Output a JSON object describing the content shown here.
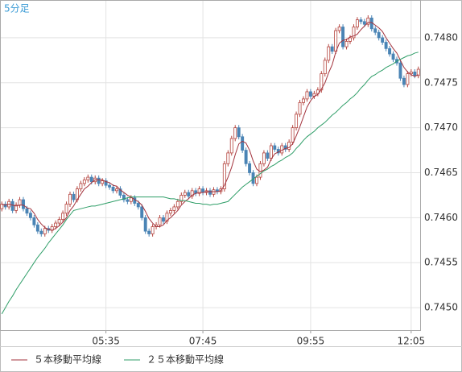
{
  "chart_data": {
    "type": "candlestick",
    "title": "5分足",
    "ylim": [
      0.74475,
      0.74842
    ],
    "yticks": [
      {
        "value": 0.745,
        "label": "0.7450"
      },
      0.7455,
      {
        "value": 0.746,
        "label": "0.7460"
      },
      0.7465,
      {
        "value": 0.747,
        "label": "0.7470"
      },
      0.7475,
      {
        "value": 0.748,
        "label": "0.7480"
      }
    ],
    "xticks": [
      {
        "value": 29,
        "label": "05:35"
      },
      {
        "value": 56,
        "label": "07:45"
      },
      {
        "value": 86,
        "label": "09:55"
      },
      {
        "value": 114,
        "label": "12:05"
      }
    ],
    "grid": true,
    "up_color": "#b5453f",
    "down_color": "#4a84b5",
    "candles": {
      "open": [
        0.7461,
        0.74615,
        0.74612,
        0.74618,
        0.74608,
        0.74614,
        0.7462,
        0.7461,
        0.74605,
        0.746,
        0.74592,
        0.74585,
        0.74582,
        0.74588,
        0.74586,
        0.7459,
        0.74594,
        0.74598,
        0.74605,
        0.74615,
        0.74626,
        0.7462,
        0.74632,
        0.74638,
        0.74642,
        0.74645,
        0.7464,
        0.74644,
        0.74638,
        0.74641,
        0.74636,
        0.74634,
        0.7463,
        0.74632,
        0.74625,
        0.7462,
        0.74618,
        0.74622,
        0.74616,
        0.74612,
        0.746,
        0.74585,
        0.74582,
        0.7459,
        0.74592,
        0.746,
        0.74596,
        0.74605,
        0.74608,
        0.74612,
        0.74618,
        0.74625,
        0.74628,
        0.74624,
        0.7463,
        0.74627,
        0.74632,
        0.74628,
        0.7463,
        0.74626,
        0.74631,
        0.74629,
        0.74632,
        0.7466,
        0.74672,
        0.74688,
        0.747,
        0.7469,
        0.74675,
        0.7466,
        0.7465,
        0.74638,
        0.74645,
        0.7466,
        0.74672,
        0.74666,
        0.7468,
        0.74676,
        0.74672,
        0.7468,
        0.74676,
        0.74684,
        0.747,
        0.74715,
        0.74728,
        0.74732,
        0.7474,
        0.74735,
        0.74738,
        0.74742,
        0.7476,
        0.74775,
        0.7479,
        0.74785,
        0.74808,
        0.74812,
        0.7479,
        0.74796,
        0.748,
        0.74812,
        0.7482,
        0.74818,
        0.74815,
        0.74822,
        0.7481,
        0.74806,
        0.748,
        0.74795,
        0.74788,
        0.74782,
        0.74776,
        0.74772,
        0.74755,
        0.74748,
        0.7476,
        0.74762,
        0.74758
      ],
      "high": [
        0.74618,
        0.74618,
        0.74621,
        0.74621,
        0.74617,
        0.74623,
        0.74623,
        0.74613,
        0.74608,
        0.74603,
        0.74595,
        0.74588,
        0.74591,
        0.74591,
        0.74593,
        0.74597,
        0.74601,
        0.74608,
        0.74618,
        0.74629,
        0.74629,
        0.74635,
        0.74641,
        0.74645,
        0.74648,
        0.74648,
        0.74647,
        0.74647,
        0.74644,
        0.74644,
        0.74639,
        0.74637,
        0.74635,
        0.74635,
        0.74628,
        0.74623,
        0.74625,
        0.74625,
        0.74619,
        0.74615,
        0.74603,
        0.74588,
        0.74593,
        0.74595,
        0.74603,
        0.74603,
        0.74608,
        0.74611,
        0.74615,
        0.74621,
        0.74628,
        0.74631,
        0.74631,
        0.74633,
        0.74633,
        0.74635,
        0.74635,
        0.74633,
        0.74633,
        0.74634,
        0.74634,
        0.74635,
        0.74663,
        0.74675,
        0.74691,
        0.74703,
        0.74703,
        0.74693,
        0.74678,
        0.74663,
        0.74653,
        0.74648,
        0.74663,
        0.74675,
        0.74675,
        0.74683,
        0.74683,
        0.74679,
        0.74683,
        0.74683,
        0.74687,
        0.74703,
        0.74718,
        0.74731,
        0.74735,
        0.74743,
        0.74743,
        0.74741,
        0.74745,
        0.74763,
        0.74778,
        0.74793,
        0.74793,
        0.74811,
        0.74815,
        0.74815,
        0.74799,
        0.74803,
        0.74815,
        0.74823,
        0.74823,
        0.74821,
        0.74825,
        0.74825,
        0.74813,
        0.74809,
        0.74803,
        0.74798,
        0.74791,
        0.74785,
        0.74779,
        0.74775,
        0.74758,
        0.74763,
        0.74765,
        0.74765,
        0.74768
      ],
      "low": [
        0.74607,
        0.74609,
        0.74609,
        0.74605,
        0.74605,
        0.74611,
        0.74607,
        0.74602,
        0.74597,
        0.74589,
        0.74582,
        0.74579,
        0.74579,
        0.74583,
        0.74583,
        0.74587,
        0.74591,
        0.74595,
        0.74602,
        0.74612,
        0.74617,
        0.74617,
        0.74629,
        0.74635,
        0.74639,
        0.74637,
        0.74637,
        0.74635,
        0.74635,
        0.74633,
        0.74631,
        0.74627,
        0.74627,
        0.74622,
        0.74617,
        0.74615,
        0.74615,
        0.74613,
        0.74609,
        0.74597,
        0.74582,
        0.74579,
        0.74579,
        0.74587,
        0.74589,
        0.74593,
        0.74593,
        0.74602,
        0.74605,
        0.74609,
        0.74615,
        0.74622,
        0.74621,
        0.74621,
        0.74624,
        0.74624,
        0.74625,
        0.74625,
        0.74623,
        0.74623,
        0.74626,
        0.74626,
        0.74629,
        0.74657,
        0.74669,
        0.74685,
        0.74687,
        0.74672,
        0.74657,
        0.74647,
        0.74635,
        0.74635,
        0.74642,
        0.74657,
        0.74663,
        0.74663,
        0.74673,
        0.74669,
        0.74669,
        0.74673,
        0.74673,
        0.74681,
        0.74697,
        0.74712,
        0.74725,
        0.74729,
        0.74732,
        0.74732,
        0.74735,
        0.74739,
        0.74757,
        0.74772,
        0.74782,
        0.74782,
        0.74805,
        0.74787,
        0.74787,
        0.74793,
        0.74797,
        0.74809,
        0.74815,
        0.74812,
        0.74812,
        0.74807,
        0.74803,
        0.74797,
        0.74792,
        0.74785,
        0.74779,
        0.74773,
        0.74769,
        0.74752,
        0.74745,
        0.74745,
        0.74757,
        0.74755,
        0.74755
      ],
      "close": [
        0.74615,
        0.74612,
        0.74618,
        0.74608,
        0.74614,
        0.7462,
        0.7461,
        0.74605,
        0.746,
        0.74592,
        0.74585,
        0.74582,
        0.74588,
        0.74586,
        0.7459,
        0.74594,
        0.74598,
        0.74605,
        0.74615,
        0.74626,
        0.7462,
        0.74632,
        0.74638,
        0.74642,
        0.74645,
        0.7464,
        0.74644,
        0.74638,
        0.74641,
        0.74636,
        0.74634,
        0.7463,
        0.74632,
        0.74625,
        0.7462,
        0.74618,
        0.74622,
        0.74616,
        0.74612,
        0.746,
        0.74585,
        0.74582,
        0.7459,
        0.74592,
        0.746,
        0.74596,
        0.74605,
        0.74608,
        0.74612,
        0.74618,
        0.74625,
        0.74628,
        0.74624,
        0.7463,
        0.74627,
        0.74632,
        0.74628,
        0.7463,
        0.74626,
        0.74631,
        0.74629,
        0.74632,
        0.7466,
        0.74672,
        0.74688,
        0.747,
        0.7469,
        0.74675,
        0.7466,
        0.7465,
        0.74638,
        0.74645,
        0.7466,
        0.74672,
        0.74666,
        0.7468,
        0.74676,
        0.74672,
        0.7468,
        0.74676,
        0.74684,
        0.747,
        0.74715,
        0.74728,
        0.74732,
        0.7474,
        0.74735,
        0.74738,
        0.74742,
        0.7476,
        0.74775,
        0.7479,
        0.74785,
        0.74808,
        0.74812,
        0.7479,
        0.74796,
        0.748,
        0.74812,
        0.7482,
        0.74818,
        0.74815,
        0.74822,
        0.7481,
        0.74806,
        0.748,
        0.74795,
        0.74788,
        0.74782,
        0.74776,
        0.74772,
        0.74755,
        0.74748,
        0.7476,
        0.74762,
        0.74758,
        0.74765
      ]
    },
    "series": [
      {
        "name": "５本移動平均線",
        "color": "#a3333d",
        "values": [
          0.74615,
          0.74614,
          0.74615,
          0.74614,
          0.74613,
          0.74614,
          0.74614,
          0.74611,
          0.7461,
          0.74605,
          0.74598,
          0.74593,
          0.74589,
          0.74587,
          0.74586,
          0.74588,
          0.74591,
          0.74595,
          0.746,
          0.74608,
          0.74613,
          0.7462,
          0.74626,
          0.74632,
          0.74635,
          0.74639,
          0.74642,
          0.74642,
          0.74642,
          0.7464,
          0.74639,
          0.74636,
          0.74635,
          0.74631,
          0.74628,
          0.74625,
          0.74623,
          0.7462,
          0.74618,
          0.74614,
          0.74607,
          0.74599,
          0.74594,
          0.7459,
          0.7459,
          0.74592,
          0.74597,
          0.746,
          0.74604,
          0.74608,
          0.74614,
          0.74618,
          0.74621,
          0.74625,
          0.74627,
          0.74628,
          0.74628,
          0.74629,
          0.74629,
          0.74629,
          0.74629,
          0.7463,
          0.74636,
          0.74645,
          0.74656,
          0.7467,
          0.74682,
          0.74685,
          0.74683,
          0.74675,
          0.74663,
          0.74654,
          0.74651,
          0.74653,
          0.74656,
          0.74665,
          0.74671,
          0.74673,
          0.74675,
          0.74677,
          0.74678,
          0.74682,
          0.74691,
          0.74701,
          0.74712,
          0.74723,
          0.7473,
          0.74735,
          0.74737,
          0.74743,
          0.7475,
          0.74761,
          0.7477,
          0.74784,
          0.74794,
          0.74797,
          0.74798,
          0.74801,
          0.74802,
          0.74804,
          0.74809,
          0.74813,
          0.74817,
          0.74817,
          0.74814,
          0.74811,
          0.74807,
          0.748,
          0.74794,
          0.74788,
          0.74783,
          0.74775,
          0.74767,
          0.74762,
          0.74759,
          0.74757,
          0.74759
        ]
      },
      {
        "name": "２５本移動平均線",
        "color": "#2f9e68",
        "values": [
          0.74493,
          0.745,
          0.74507,
          0.74513,
          0.7452,
          0.74526,
          0.74532,
          0.74538,
          0.74544,
          0.7455,
          0.74556,
          0.74561,
          0.74566,
          0.74572,
          0.74577,
          0.74582,
          0.74587,
          0.74592,
          0.74598,
          0.74603,
          0.74608,
          0.74609,
          0.7461,
          0.74611,
          0.74612,
          0.74613,
          0.74613,
          0.74614,
          0.74615,
          0.74616,
          0.74617,
          0.74618,
          0.74619,
          0.7462,
          0.74621,
          0.74622,
          0.74623,
          0.74623,
          0.74623,
          0.74623,
          0.74623,
          0.74623,
          0.74623,
          0.74623,
          0.74623,
          0.74623,
          0.74622,
          0.74621,
          0.74621,
          0.7462,
          0.74619,
          0.74619,
          0.74618,
          0.74617,
          0.74616,
          0.74616,
          0.74615,
          0.74615,
          0.74614,
          0.74615,
          0.74615,
          0.74616,
          0.74617,
          0.74618,
          0.74622,
          0.74626,
          0.7463,
          0.74634,
          0.74637,
          0.7464,
          0.74643,
          0.74646,
          0.74649,
          0.74652,
          0.74654,
          0.74657,
          0.74659,
          0.74662,
          0.74664,
          0.74667,
          0.74669,
          0.74672,
          0.74677,
          0.74681,
          0.74686,
          0.7469,
          0.74693,
          0.74696,
          0.747,
          0.74703,
          0.74706,
          0.7471,
          0.74714,
          0.74717,
          0.74721,
          0.74725,
          0.74728,
          0.74732,
          0.74735,
          0.74739,
          0.74744,
          0.74748,
          0.74753,
          0.74757,
          0.74759,
          0.74762,
          0.74764,
          0.74767,
          0.74769,
          0.74771,
          0.74774,
          0.74776,
          0.74778,
          0.7478,
          0.74781,
          0.74783,
          0.74784
        ]
      }
    ]
  }
}
